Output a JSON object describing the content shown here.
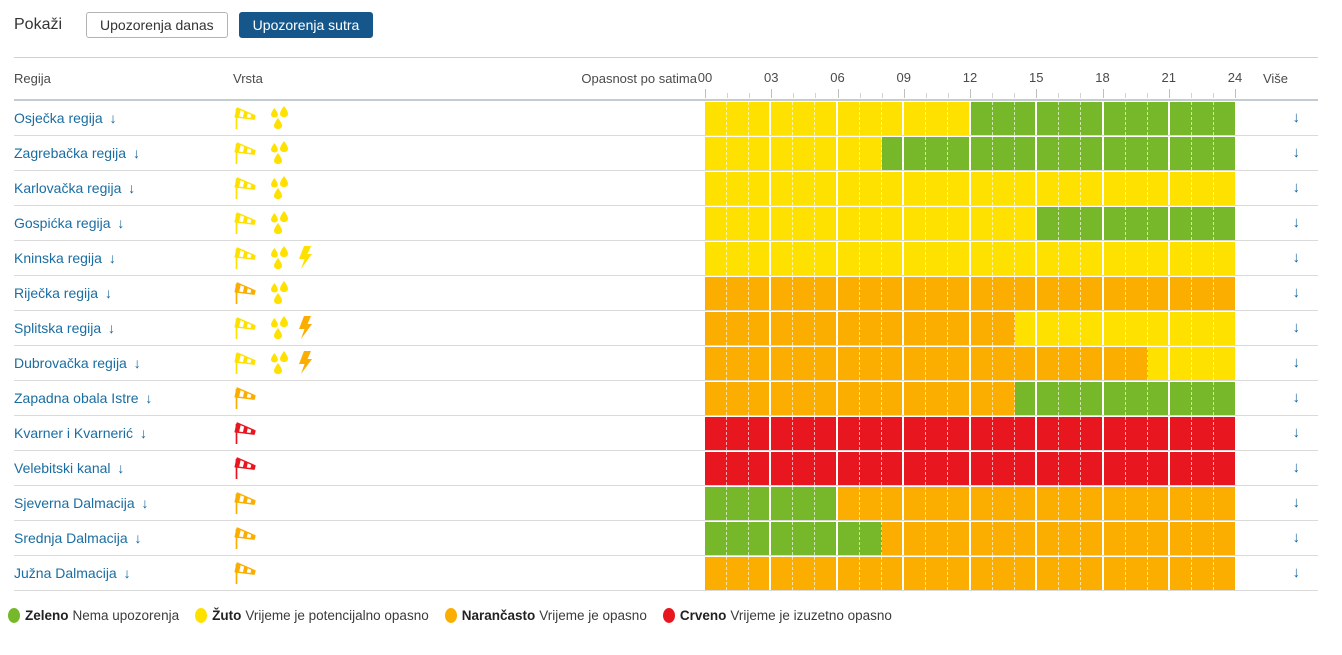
{
  "toolbar": {
    "show_label": "Pokaži",
    "today_button": "Upozorenja danas",
    "tomorrow_button": "Upozorenja sutra"
  },
  "table": {
    "headers": {
      "region": "Regija",
      "type": "Vrsta",
      "danger": "Opasnost po satima",
      "more": "Više"
    },
    "hour_labels": [
      "00",
      "03",
      "06",
      "09",
      "12",
      "15",
      "18",
      "21",
      "24"
    ],
    "rows": [
      {
        "name": "Osječka regija",
        "icons": [
          {
            "type": "windsock",
            "color": "yellow"
          },
          {
            "type": "rain",
            "color": "yellow"
          }
        ],
        "segments": [
          {
            "from": 0,
            "to": 12,
            "level": "yellow"
          },
          {
            "from": 12,
            "to": 24,
            "level": "green"
          }
        ]
      },
      {
        "name": "Zagrebačka regija",
        "icons": [
          {
            "type": "windsock",
            "color": "yellow"
          },
          {
            "type": "rain",
            "color": "yellow"
          }
        ],
        "segments": [
          {
            "from": 0,
            "to": 8,
            "level": "yellow"
          },
          {
            "from": 8,
            "to": 24,
            "level": "green"
          }
        ]
      },
      {
        "name": "Karlovačka regija",
        "icons": [
          {
            "type": "windsock",
            "color": "yellow"
          },
          {
            "type": "rain",
            "color": "yellow"
          }
        ],
        "segments": [
          {
            "from": 0,
            "to": 24,
            "level": "yellow"
          }
        ]
      },
      {
        "name": "Gospićka regija",
        "icons": [
          {
            "type": "windsock",
            "color": "yellow"
          },
          {
            "type": "rain",
            "color": "yellow"
          }
        ],
        "segments": [
          {
            "from": 0,
            "to": 15,
            "level": "yellow"
          },
          {
            "from": 15,
            "to": 24,
            "level": "green"
          }
        ]
      },
      {
        "name": "Kninska regija",
        "icons": [
          {
            "type": "windsock",
            "color": "yellow"
          },
          {
            "type": "rain",
            "color": "yellow"
          },
          {
            "type": "storm",
            "color": "yellow"
          }
        ],
        "segments": [
          {
            "from": 0,
            "to": 24,
            "level": "yellow"
          }
        ]
      },
      {
        "name": "Riječka regija",
        "icons": [
          {
            "type": "windsock",
            "color": "orange"
          },
          {
            "type": "rain",
            "color": "yellow"
          }
        ],
        "segments": [
          {
            "from": 0,
            "to": 24,
            "level": "orange"
          }
        ]
      },
      {
        "name": "Splitska regija",
        "icons": [
          {
            "type": "windsock",
            "color": "yellow"
          },
          {
            "type": "rain",
            "color": "yellow"
          },
          {
            "type": "storm",
            "color": "orange"
          }
        ],
        "segments": [
          {
            "from": 0,
            "to": 14,
            "level": "orange"
          },
          {
            "from": 14,
            "to": 24,
            "level": "yellow"
          }
        ]
      },
      {
        "name": "Dubrovačka regija",
        "icons": [
          {
            "type": "windsock",
            "color": "yellow"
          },
          {
            "type": "rain",
            "color": "yellow"
          },
          {
            "type": "storm",
            "color": "orange"
          }
        ],
        "segments": [
          {
            "from": 0,
            "to": 20,
            "level": "orange"
          },
          {
            "from": 20,
            "to": 24,
            "level": "yellow"
          }
        ]
      },
      {
        "name": "Zapadna obala Istre",
        "icons": [
          {
            "type": "windsock",
            "color": "orange"
          }
        ],
        "segments": [
          {
            "from": 0,
            "to": 14,
            "level": "orange"
          },
          {
            "from": 14,
            "to": 24,
            "level": "green"
          }
        ]
      },
      {
        "name": "Kvarner i Kvarnerić",
        "icons": [
          {
            "type": "windsock",
            "color": "red"
          }
        ],
        "segments": [
          {
            "from": 0,
            "to": 24,
            "level": "red"
          }
        ]
      },
      {
        "name": "Velebitski kanal",
        "icons": [
          {
            "type": "windsock",
            "color": "red"
          }
        ],
        "segments": [
          {
            "from": 0,
            "to": 24,
            "level": "red"
          }
        ]
      },
      {
        "name": "Sjeverna Dalmacija",
        "icons": [
          {
            "type": "windsock",
            "color": "orange"
          }
        ],
        "segments": [
          {
            "from": 0,
            "to": 6,
            "level": "green"
          },
          {
            "from": 6,
            "to": 24,
            "level": "orange"
          }
        ]
      },
      {
        "name": "Srednja Dalmacija",
        "icons": [
          {
            "type": "windsock",
            "color": "orange"
          }
        ],
        "segments": [
          {
            "from": 0,
            "to": 8,
            "level": "green"
          },
          {
            "from": 8,
            "to": 24,
            "level": "orange"
          }
        ]
      },
      {
        "name": "Južna Dalmacija",
        "icons": [
          {
            "type": "windsock",
            "color": "orange"
          }
        ],
        "segments": [
          {
            "from": 0,
            "to": 24,
            "level": "orange"
          }
        ]
      }
    ]
  },
  "legend": [
    {
      "label": "Zeleno",
      "description": "Nema upozorenja",
      "level": "green"
    },
    {
      "label": "Žuto",
      "description": "Vrijeme je potencijalno opasno",
      "level": "yellow"
    },
    {
      "label": "Narančasto",
      "description": "Vrijeme je opasno",
      "level": "orange"
    },
    {
      "label": "Crveno",
      "description": "Vrijeme je izuzetno opasno",
      "level": "red"
    }
  ],
  "colors": {
    "green": "#76b82a",
    "yellow": "#ffe100",
    "orange": "#fbae00",
    "red": "#e8161e",
    "active_button": "#15578b",
    "link_blue": "#1a6da2"
  }
}
